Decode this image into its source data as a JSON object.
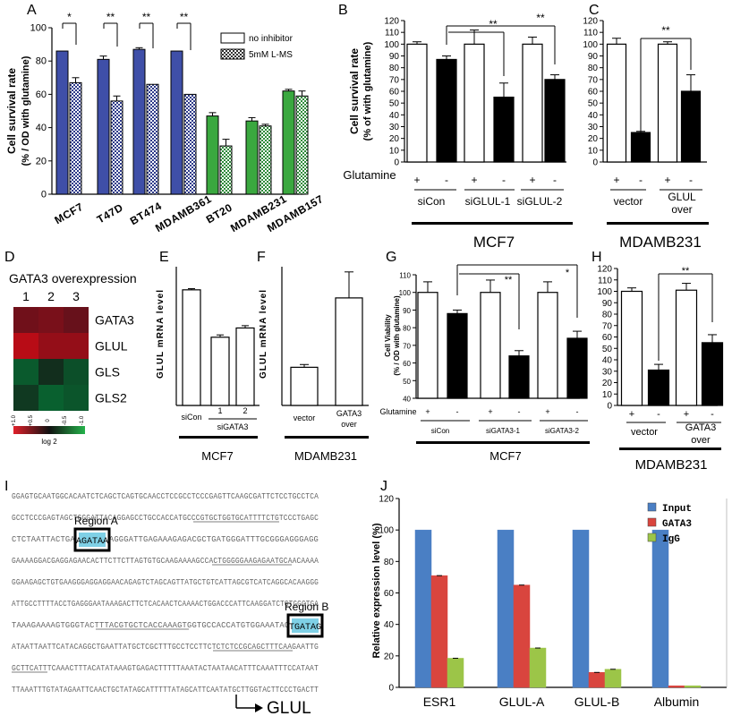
{
  "panel_letters": {
    "A": "A",
    "B": "B",
    "C": "C",
    "D": "D",
    "E": "E",
    "F": "F",
    "G": "G",
    "H": "H",
    "I": "I",
    "J": "J"
  },
  "panelA": {
    "ylabel_line1": "Cell survival rate",
    "ylabel_line2": "(% / OD with glutamine)",
    "yticks": [
      "0",
      "20",
      "40",
      "60",
      "80",
      "100"
    ],
    "categories": [
      "MCF7",
      "T47D",
      "BT474",
      "MDAMB361",
      "BT20",
      "MDAMB231",
      "MDAMB157"
    ],
    "legend": [
      "no inhibitor",
      "5mM L-MS"
    ],
    "sig": [
      "*",
      "**",
      "**",
      "**"
    ]
  },
  "panelB": {
    "ylabel_line1": "Cell survival rate",
    "ylabel_line2": "(% of with glutamine)",
    "yticks": [
      "0",
      "10",
      "20",
      "30",
      "40",
      "50",
      "60",
      "70",
      "80",
      "90",
      "100",
      "110",
      "120"
    ],
    "row_label": "Glutamine",
    "signs": [
      "+",
      "-",
      "+",
      "-",
      "+",
      "-"
    ],
    "groups": [
      "siCon",
      "siGLUL-1",
      "siGLUL-2"
    ],
    "cell_line": "MCF7",
    "sig": [
      "**",
      "**"
    ]
  },
  "panelC": {
    "yticks": [
      "0",
      "10",
      "20",
      "30",
      "40",
      "50",
      "60",
      "70",
      "80",
      "90",
      "100",
      "110",
      "120"
    ],
    "signs": [
      "+",
      "-",
      "+",
      "-"
    ],
    "groups": [
      "vector",
      "GLUL",
      "over"
    ],
    "cell_line": "MDAMB231",
    "sig": [
      "**"
    ]
  },
  "panelD": {
    "title": "GATA3 overexpression",
    "cols": [
      "1",
      "2",
      "3"
    ],
    "rows": [
      "GATA3",
      "GLUL",
      "GLS",
      "GLS2"
    ],
    "scale_ticks": [
      "+1.0",
      "+0.5",
      "0",
      "-0.5",
      "-1.0"
    ],
    "scale_label": "log 2"
  },
  "panelE": {
    "ylabel": "GLUL mRNA level",
    "groups": [
      "siCon",
      "1",
      "2",
      "siGATA3"
    ],
    "cell_line": "MCF7"
  },
  "panelF": {
    "ylabel": "GLUL mRNA level",
    "groups": [
      "vector",
      "GATA3",
      "over"
    ],
    "cell_line": "MDAMB231"
  },
  "panelG": {
    "ylabel_line1": "Cell Viability",
    "ylabel_line2": "(% / OD with glutamine)",
    "yticks": [
      "40",
      "50",
      "60",
      "70",
      "80",
      "90",
      "100",
      "110"
    ],
    "row_label": "Glutamine",
    "signs": [
      "+",
      "-",
      "+",
      "-",
      "+",
      "-"
    ],
    "groups": [
      "siCon",
      "siGATA3-1",
      "siGATA3-2"
    ],
    "cell_line": "MCF7",
    "sig": [
      "**",
      "*"
    ]
  },
  "panelH": {
    "yticks": [
      "0",
      "10",
      "20",
      "30",
      "40",
      "50",
      "60",
      "70",
      "80",
      "90",
      "100",
      "110",
      "120"
    ],
    "signs": [
      "+",
      "-",
      "+",
      "-"
    ],
    "groups": [
      "vector",
      "GATA3",
      "over"
    ],
    "cell_line": "MDAMB231",
    "sig": [
      "**"
    ]
  },
  "panelI": {
    "lines": [
      "GGAGTGCAATGGCACAATCTCAGCTCAGTGCAACCTCCGCCTCCCGAGTTCAAGCGATTCTCCTGCCTCA",
      "GCCTCCCGAGTAGCTGGGATTACAGGAGCCTGCCACCATGCCCGTGCTGGTGCATTTTCTGTCCCTGAGC",
      "CTCTAATTACTGAG      GGGAGAGGGATTGAGAAAGAGACGCTGATGGGATTTGCGGGAGGGAGG",
      "GAAAAGGACGAGGAGAACACTTCTTCTTAGTGTGCAAGAAAAGCCACTGGGGGAAGAGAATGCAACAAAA",
      "GGAAGAGCTGTGAAGGGAGGAGGAACAGAGTCTAGCAGTTATGCTGTCATTAGCGTCATCAGGCACAAGGG",
      "ATTGCCTTTTACCTGAGGGAATAAAGACTTCTCACAACTCAAAACTGGACCCATTCAAGGATCTGTGGGTGA",
      "TAAAGAAAAGTGGGTACTTTACGTGCTCACCAAAGTGGTGCCACCATGTGGAAATAGC      ATTT",
      "ATAATTAATTCATACAGGCTGAATTATGCTCGCTTTGCCTCCTTCTCTCTCCGCAGCTTTCAAGAATTG",
      "GCTTCATTTCAAACTTTACATATAAAGTGAGACTTTTTAAATACTAATAACATTTCAAATTTCCATAAT",
      "TTAAATTTGTATAGAATTCAACTGCTATAGCATTTTTATAGCATTCAATATGCTTGGTACTTCCCTGACTT"
    ],
    "region_a_label": "Region A",
    "region_a_seq": "AGATAA",
    "region_b_label": "Region B",
    "region_b_seq": "TGATAG",
    "gene_label": "GLUL"
  },
  "panelJ": {
    "ylabel": "Relative expression level (%)",
    "yticks": [
      "0",
      "20",
      "40",
      "60",
      "80",
      "100",
      "120"
    ],
    "categories": [
      "ESR1",
      "GLUL-A",
      "GLUL-B",
      "Albumin"
    ],
    "legend": [
      "Input",
      "GATA3",
      "IgG"
    ]
  },
  "colors": {
    "blue_bar": "#3f4fa8",
    "green_bar": "#3aa83f",
    "j_input": "#4a7fc4",
    "j_gata3": "#d9453e",
    "j_igg": "#9cc548",
    "region_box": "#000000",
    "region_fill": "#7fd0e6"
  },
  "chart_data": [
    {
      "type": "bar",
      "panel": "A",
      "categories": [
        "MCF7",
        "T47D",
        "BT474",
        "MDAMB361",
        "BT20",
        "MDAMB231",
        "MDAMB157"
      ],
      "series": [
        {
          "name": "no inhibitor",
          "values": [
            86,
            81,
            87,
            86,
            47,
            44,
            62
          ],
          "errors": [
            0,
            2,
            1,
            0,
            2,
            2,
            1
          ]
        },
        {
          "name": "5mM L-MS",
          "values": [
            67,
            56,
            66,
            60,
            29,
            41,
            59
          ],
          "errors": [
            3,
            3,
            0,
            0,
            4,
            1,
            3
          ]
        }
      ],
      "ylim": [
        0,
        100
      ],
      "ylabel": "Cell survival rate (% / OD with glutamine)"
    },
    {
      "type": "bar",
      "panel": "B",
      "categories": [
        "siCon +",
        "siCon -",
        "siGLUL-1 +",
        "siGLUL-1 -",
        "siGLUL-2 +",
        "siGLUL-2 -"
      ],
      "values": [
        100,
        87,
        100,
        55,
        100,
        70
      ],
      "errors": [
        2,
        3,
        12,
        12,
        6,
        4
      ],
      "ylim": [
        0,
        120
      ],
      "ylabel": "Cell survival rate (% of with glutamine)"
    },
    {
      "type": "bar",
      "panel": "C",
      "categories": [
        "vector +",
        "vector -",
        "GLUL over +",
        "GLUL over -"
      ],
      "values": [
        100,
        25,
        100,
        60
      ],
      "errors": [
        5,
        1,
        2,
        14
      ],
      "ylim": [
        0,
        120
      ]
    },
    {
      "type": "heatmap",
      "panel": "D",
      "rows": [
        "GATA3",
        "GLUL",
        "GLS",
        "GLS2"
      ],
      "cols": [
        "1",
        "2",
        "3"
      ],
      "values": [
        [
          0.4,
          0.45,
          0.35
        ],
        [
          0.8,
          0.6,
          0.6
        ],
        [
          -0.5,
          -0.1,
          -0.4
        ],
        [
          -0.2,
          -0.55,
          -0.45
        ]
      ]
    },
    {
      "type": "bar",
      "panel": "E",
      "categories": [
        "siCon",
        "siGATA3 1",
        "siGATA3 2"
      ],
      "values": [
        1.0,
        0.59,
        0.67
      ],
      "errors": [
        0.01,
        0.02,
        0.02
      ],
      "ylabel": "GLUL mRNA level"
    },
    {
      "type": "bar",
      "panel": "F",
      "categories": [
        "vector",
        "GATA3 over"
      ],
      "values": [
        1.1,
        3.1
      ],
      "errors": [
        0.08,
        0.75
      ],
      "ylabel": "GLUL mRNA level"
    },
    {
      "type": "bar",
      "panel": "G",
      "categories": [
        "siCon +",
        "siCon -",
        "siGATA3-1 +",
        "siGATA3-1 -",
        "siGATA3-2 +",
        "siGATA3-2 -"
      ],
      "values": [
        100,
        88,
        100,
        64,
        100,
        74
      ],
      "errors": [
        6,
        2,
        7,
        3,
        6,
        4
      ],
      "ylim": [
        40,
        110
      ],
      "ylabel": "Cell Viability (% / OD with glutamine)"
    },
    {
      "type": "bar",
      "panel": "H",
      "categories": [
        "vector +",
        "vector -",
        "GATA3 over +",
        "GATA3 over -"
      ],
      "values": [
        100,
        31,
        101,
        55
      ],
      "errors": [
        3,
        5,
        6,
        7
      ],
      "ylim": [
        0,
        120
      ]
    },
    {
      "type": "bar",
      "panel": "J",
      "categories": [
        "ESR1",
        "GLUL-A",
        "GLUL-B",
        "Albumin"
      ],
      "series": [
        {
          "name": "Input",
          "values": [
            100,
            100,
            100,
            100
          ]
        },
        {
          "name": "GATA3",
          "values": [
            71,
            65,
            9.5,
            1
          ]
        },
        {
          "name": "IgG",
          "values": [
            18.5,
            25,
            11.5,
            1
          ]
        }
      ],
      "ylim": [
        0,
        120
      ],
      "ylabel": "Relative expression level (%)"
    }
  ]
}
